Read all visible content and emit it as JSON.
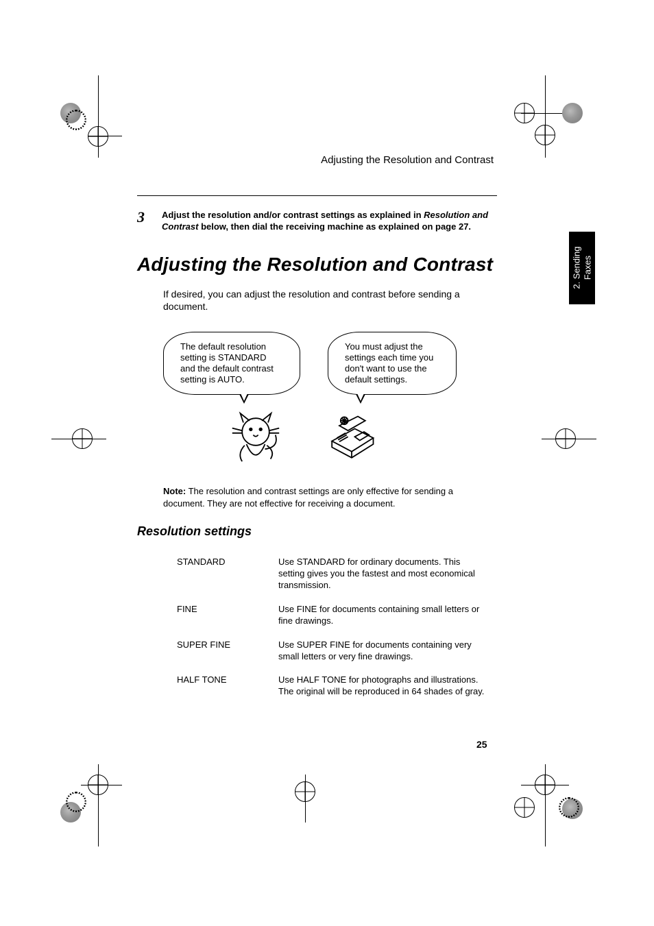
{
  "header": {
    "running_title": "Adjusting the Resolution and Contrast"
  },
  "sideTab": {
    "label": "2. Sending\nFaxes"
  },
  "step": {
    "number": "3",
    "text_before": "Adjust the resolution and/or contrast settings as explained in ",
    "italic": "Resolution and Contrast",
    "text_after": " below, then dial the receiving machine as explained on page 27."
  },
  "mainHeading": "Adjusting the Resolution and Contrast",
  "intro": "If desired, you can adjust the resolution and contrast before sending a document.",
  "bubbles": {
    "left": "The default resolution setting is STANDARD and the default contrast setting is AUTO.",
    "right": "You must adjust the settings each time you don't want to use the default settings."
  },
  "note": {
    "label": "Note:",
    "text": " The resolution and contrast settings are only effective for sending a document. They are not effective for receiving a document."
  },
  "subheading": "Resolution settings",
  "settings": [
    {
      "name": "STANDARD",
      "desc": "Use STANDARD for ordinary documents. This setting gives you the fastest and most economical transmission."
    },
    {
      "name": "FINE",
      "desc": "Use FINE for documents containing small letters or fine drawings."
    },
    {
      "name": "SUPER FINE",
      "desc": "Use SUPER FINE for documents containing very small letters or very fine drawings."
    },
    {
      "name": "HALF TONE",
      "desc": "Use HALF TONE for photographs and illustrations. The original will be reproduced in 64 shades of gray."
    }
  ],
  "pageNumber": "25"
}
